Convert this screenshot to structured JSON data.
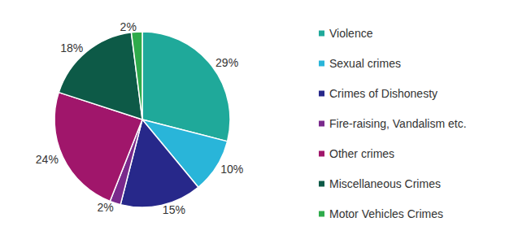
{
  "chart_data": {
    "type": "pie",
    "categories": [
      "Violence",
      "Sexual crimes",
      "Crimes of Dishonesty",
      "Fire-raising, Vandalism etc.",
      "Other crimes",
      "Miscellaneous Crimes",
      "Motor Vehicles Crimes"
    ],
    "values": [
      29,
      10,
      15,
      2,
      24,
      18,
      2
    ],
    "value_labels": [
      "29%",
      "10%",
      "15%",
      "2%",
      "24%",
      "18%",
      "2%"
    ],
    "colors": [
      "#1fa99a",
      "#29b5d9",
      "#27288a",
      "#7a2a8c",
      "#a0166b",
      "#0d5a47",
      "#2eab4b"
    ],
    "data_labels": true,
    "legend": "right"
  }
}
